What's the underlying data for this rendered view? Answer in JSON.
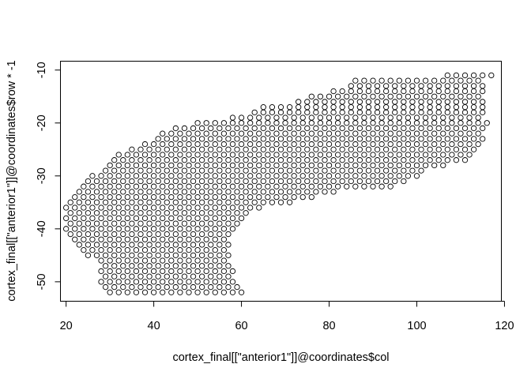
{
  "chart_data": {
    "type": "scatter",
    "marker": "open-circle",
    "marker_color": "#000000",
    "xlabel": "cortex_final[[\"anterior1\"]]@coordinates$col",
    "ylabel": "cortex_final[[\"anterior1\"]]@coordinates$row * -1",
    "xlim": [
      18.8,
      119.2
    ],
    "ylim": [
      -53.6,
      -8.4
    ],
    "x_ticks": [
      20,
      40,
      60,
      80,
      100,
      120
    ],
    "y_ticks": [
      -50,
      -40,
      -30,
      -20,
      -10
    ],
    "x_tick_labels": [
      "20",
      "40",
      "60",
      "80",
      "100",
      "120"
    ],
    "y_tick_labels": [
      "-50",
      "-40",
      "-30",
      "-20",
      "-10"
    ],
    "grid": false,
    "legend": "none",
    "point_lattice": {
      "description": "hexagonal spot grid; points at every integer x with parity matching y, listed per row as [y, x_min, x_max]",
      "rows": [
        [
          -11,
          107,
          117
        ],
        [
          -12,
          86,
          114
        ],
        [
          -13,
          85,
          115
        ],
        [
          -14,
          81,
          116
        ],
        [
          -15,
          76,
          115
        ],
        [
          -16,
          73,
          116
        ],
        [
          -17,
          65,
          115
        ],
        [
          -18,
          63,
          116
        ],
        [
          -19,
          58,
          115
        ],
        [
          -20,
          50,
          116
        ],
        [
          -21,
          45,
          115
        ],
        [
          -22,
          42,
          114
        ],
        [
          -23,
          41,
          115
        ],
        [
          -24,
          38,
          114
        ],
        [
          -25,
          35,
          113
        ],
        [
          -26,
          32,
          112
        ],
        [
          -27,
          31,
          111
        ],
        [
          -28,
          30,
          106
        ],
        [
          -29,
          29,
          101
        ],
        [
          -30,
          26,
          100
        ],
        [
          -31,
          25,
          97
        ],
        [
          -32,
          24,
          95
        ],
        [
          -33,
          23,
          82
        ],
        [
          -34,
          22,
          77
        ],
        [
          -35,
          21,
          71
        ],
        [
          -36,
          20,
          65
        ],
        [
          -37,
          21,
          62
        ],
        [
          -38,
          20,
          61
        ],
        [
          -39,
          21,
          59
        ],
        [
          -40,
          20,
          58
        ],
        [
          -41,
          21,
          57
        ],
        [
          -42,
          22,
          56
        ],
        [
          -43,
          23,
          57
        ],
        [
          -44,
          24,
          56
        ],
        [
          -45,
          25,
          57
        ],
        [
          -46,
          28,
          56
        ],
        [
          -47,
          29,
          57
        ],
        [
          -48,
          28,
          58
        ],
        [
          -49,
          29,
          57
        ],
        [
          -50,
          28,
          58
        ],
        [
          -51,
          29,
          59
        ],
        [
          -52,
          30,
          60
        ]
      ]
    }
  }
}
